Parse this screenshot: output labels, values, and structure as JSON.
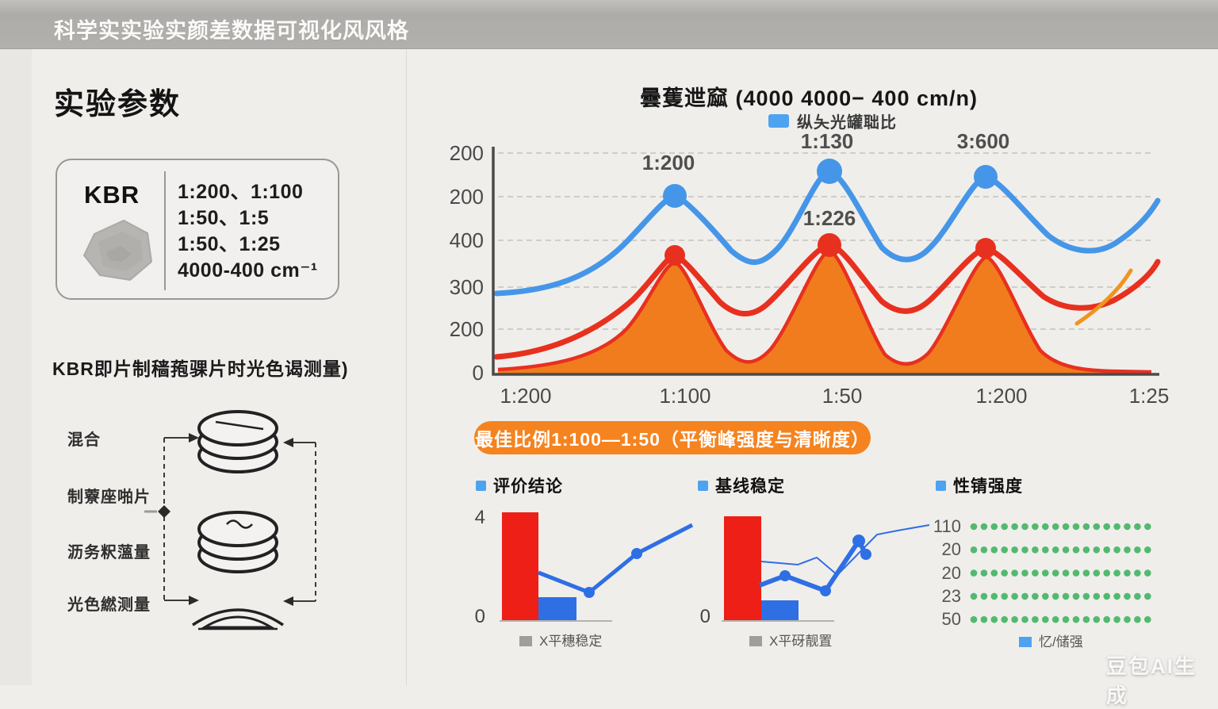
{
  "page": {
    "topbar_title": "科学实实验实颜差数据可视化风风格",
    "watermark": "豆包AI生成",
    "colors": {
      "accent_blue": "#4596e8",
      "accent_red": "#e8301f",
      "accent_orange": "#f07c1e",
      "banner_orange": "#f5831f",
      "green_dot": "#53b96f"
    }
  },
  "left_panel": {
    "heading": "实验参数",
    "param_box": {
      "material": "KBR",
      "ratio_lines": [
        "1:200、1:100",
        "1:50、1:5",
        "1:50、1:25",
        "4000-400 cm⁻¹"
      ]
    },
    "subtitle": "KBR即片制穑菢骒片时光色谒测量)",
    "flow_labels": [
      "混合",
      "制藔座啪片",
      "沥务粎薀量",
      "光色繎测量"
    ]
  },
  "main_chart": {
    "title": "曇蒦迣窳 (4000 4000− 400 cm/n)",
    "legend": "纵夨光罐聉比",
    "y_ticks": [
      "200",
      "200",
      "400",
      "300",
      "200",
      "0"
    ],
    "x_ticks": [
      "1:200",
      "1:100",
      "1:50",
      "1:200",
      "1:25"
    ],
    "peak_labels": [
      "1:200",
      "1:130",
      "1:226",
      "3:600"
    ]
  },
  "banner": {
    "text": "最佳比例1:100—1:50（平衡峰强度与清晰度）"
  },
  "mini_charts": [
    {
      "header": "评价结论",
      "y_top": "4",
      "y_bottom": "0",
      "legend": "X平穗稳定"
    },
    {
      "header": "基线稳定",
      "y_bottom": "0",
      "legend": "X平砑靓置"
    },
    {
      "header": "性锖强度",
      "legend": "忆/储强"
    }
  ],
  "chart_data": [
    {
      "type": "line",
      "title": "曇蒦迣窳 (4000 4000− 400 cm/n)",
      "legend_entries": [
        "纵夨光罐聉比"
      ],
      "x_tick_labels": [
        "1:200",
        "1:100",
        "1:50",
        "1:200",
        "1:25"
      ],
      "y_tick_labels": [
        "200",
        "200",
        "400",
        "300",
        "200",
        "0"
      ],
      "grid": "dashed-horizontal",
      "annotations": [
        {
          "text": "1:200",
          "series": "blue-curve",
          "at_x_pct": 27
        },
        {
          "text": "1:130",
          "series": "blue-curve",
          "at_x_pct": 50
        },
        {
          "text": "3:600",
          "series": "blue-curve",
          "at_x_pct": 74
        },
        {
          "text": "1:226",
          "series": "red-curve",
          "at_x_pct": 50
        }
      ],
      "series": [
        {
          "name": "blue-curve",
          "color": "#4596e8",
          "x_pct": [
            0,
            13,
            27,
            39,
            50,
            62,
            74,
            87,
            100
          ],
          "y_pct": [
            36,
            45,
            79,
            49,
            90,
            50,
            88,
            52,
            77
          ],
          "markers_at_x_pct": [
            27,
            50,
            74
          ]
        },
        {
          "name": "red-curve",
          "color": "#e8301f",
          "x_pct": [
            0,
            13,
            27,
            39,
            50,
            62,
            74,
            87,
            100
          ],
          "y_pct": [
            9,
            20,
            52,
            29,
            57,
            28,
            56,
            28,
            42
          ],
          "markers_at_x_pct": [
            27,
            50,
            74
          ]
        },
        {
          "name": "orange-area",
          "color": "#f07c1e",
          "fill": true,
          "x_pct": [
            0,
            15,
            27,
            39,
            50,
            62,
            74,
            88,
            100
          ],
          "y_pct": [
            2,
            8,
            49,
            6,
            55,
            6,
            52,
            3,
            1
          ]
        },
        {
          "name": "orange-fragment",
          "color": "#f0941e",
          "x_pct": [
            88,
            97
          ],
          "y_pct": [
            22,
            46
          ]
        }
      ]
    },
    {
      "type": "bar+line",
      "title": "评价结论",
      "ylim": [
        0,
        4
      ],
      "y_tick_labels": [
        "4",
        "0"
      ],
      "bar_values": [
        4.0,
        0.85
      ],
      "bar_colors": [
        "#ee1f16",
        "#2f6fe4"
      ],
      "line_values": [
        1.8,
        1.1,
        2.5,
        3.5
      ],
      "line_color": "#2f6fe4",
      "legend_entries": [
        "X平穗稳定"
      ]
    },
    {
      "type": "bar+line",
      "title": "基线稳定",
      "ylim": [
        0,
        4
      ],
      "y_tick_labels": [
        "0"
      ],
      "bar_values": [
        4.0,
        0.8
      ],
      "bar_colors": [
        "#ee1f16",
        "#2f6fe4"
      ],
      "thick_line_values": [
        1.4,
        1.7,
        1.1,
        3.0,
        2.5
      ],
      "thin_line_values": [
        2.2,
        2.1,
        2.3,
        1.7,
        3.2,
        3.4,
        3.5
      ],
      "line_color": "#2f6fe4",
      "legend_entries": [
        "X平砑靓置"
      ]
    },
    {
      "type": "dot-matrix",
      "title": "性锖强度",
      "dot_color": "#53b96f",
      "rows": [
        {
          "label": "110",
          "dots": 18
        },
        {
          "label": "20",
          "dots": 18
        },
        {
          "label": "20",
          "dots": 18
        },
        {
          "label": "23",
          "dots": 18
        },
        {
          "label": "50",
          "dots": 18
        }
      ],
      "legend_entries": [
        "忆/储强"
      ]
    }
  ]
}
